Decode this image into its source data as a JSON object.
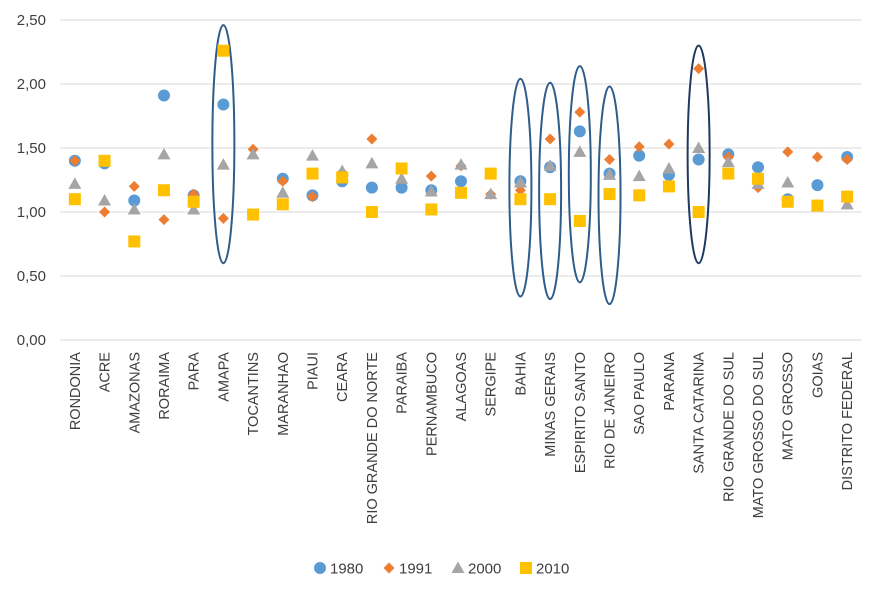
{
  "chart_data": {
    "type": "scatter",
    "title": "",
    "xlabel": "",
    "ylabel": "",
    "ylim": [
      0,
      2.5
    ],
    "yticks": [
      "0,00",
      "0,50",
      "1,00",
      "1,50",
      "2,00",
      "2,50"
    ],
    "yticks_values": [
      0,
      0.5,
      1.0,
      1.5,
      2.0,
      2.5
    ],
    "grid": true,
    "legend_position": "bottom",
    "categories": [
      "RONDONIA",
      "ACRE",
      "AMAZONAS",
      "RORAIMA",
      "PARA",
      "AMAPA",
      "TOCANTINS",
      "MARANHAO",
      "PIAUI",
      "CEARA",
      "RIO GRANDE DO NORTE",
      "PARAIBA",
      "PERNAMBUCO",
      "ALAGOAS",
      "SERGIPE",
      "BAHIA",
      "MINAS GERAIS",
      "ESPIRITO SANTO",
      "RIO DE JANEIRO",
      "SAO PAULO",
      "PARANA",
      "SANTA CATARINA",
      "RIO GRANDE DO SUL",
      "MATO GROSSO DO SUL",
      "MATO GROSSO",
      "GOIAS",
      "DISTRITO FEDERAL"
    ],
    "series": [
      {
        "name": "1980",
        "marker": "circle",
        "color": "#5b9bd5",
        "values": [
          1.4,
          1.38,
          1.09,
          1.91,
          1.13,
          1.84,
          null,
          1.26,
          1.13,
          1.24,
          1.19,
          1.19,
          1.17,
          1.24,
          null,
          1.24,
          1.35,
          1.63,
          1.3,
          1.44,
          1.29,
          1.41,
          1.45,
          1.35,
          1.1,
          1.21,
          1.43
        ]
      },
      {
        "name": "1991",
        "marker": "diamond",
        "color": "#ed7d31",
        "values": [
          1.4,
          1.0,
          1.2,
          0.94,
          1.14,
          0.95,
          1.49,
          1.24,
          1.12,
          1.31,
          1.57,
          1.34,
          1.28,
          1.36,
          1.14,
          1.17,
          1.57,
          1.78,
          1.41,
          1.51,
          1.53,
          2.12,
          1.43,
          1.19,
          1.47,
          1.43,
          1.41
        ]
      },
      {
        "name": "2000",
        "marker": "triangle",
        "color": "#a5a5a5",
        "values": [
          1.22,
          1.09,
          1.02,
          1.45,
          1.02,
          1.37,
          1.45,
          1.15,
          1.44,
          1.32,
          1.38,
          1.26,
          1.16,
          1.37,
          1.14,
          1.23,
          1.36,
          1.47,
          1.29,
          1.28,
          1.34,
          1.5,
          1.39,
          1.22,
          1.23,
          1.05,
          1.06
        ]
      },
      {
        "name": "2010",
        "marker": "square",
        "color": "#ffc000",
        "values": [
          1.1,
          1.4,
          0.77,
          1.17,
          1.08,
          2.26,
          0.98,
          1.06,
          1.3,
          1.27,
          1.0,
          1.34,
          1.02,
          1.15,
          1.3,
          1.1,
          1.1,
          0.93,
          1.14,
          1.13,
          1.2,
          1.0,
          1.3,
          1.26,
          1.08,
          1.05,
          1.12
        ]
      }
    ],
    "highlight_ellipses": [
      {
        "category": "AMAPA",
        "range": [
          0.6,
          2.46
        ],
        "color": "#2e5d8a"
      },
      {
        "category": "BAHIA",
        "range": [
          0.34,
          2.04
        ],
        "color": "#2e5d8a"
      },
      {
        "category": "MINAS GERAIS",
        "range": [
          0.32,
          2.01
        ],
        "color": "#2e5d8a"
      },
      {
        "category": "ESPIRITO SANTO",
        "range": [
          0.45,
          2.14
        ],
        "color": "#2e5d8a"
      },
      {
        "category": "RIO DE JANEIRO",
        "range": [
          0.28,
          1.98
        ],
        "color": "#2e5d8a"
      },
      {
        "category": "SANTA CATARINA",
        "range": [
          0.6,
          2.3
        ],
        "color": "#1f3a5f"
      }
    ]
  }
}
